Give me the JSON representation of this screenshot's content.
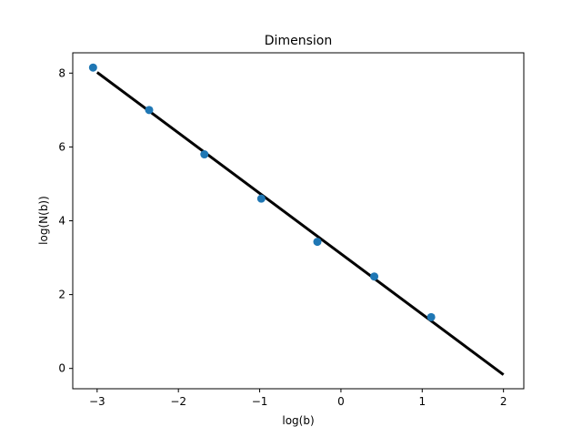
{
  "chart_data": {
    "type": "scatter",
    "title": "Dimension",
    "xlabel": "log(b)",
    "ylabel": "log(N(b))",
    "xlim": [
      -3.3,
      2.25
    ],
    "ylim": [
      -0.55,
      8.55
    ],
    "xticks": [
      -3,
      -2,
      -1,
      0,
      1,
      2
    ],
    "xtick_labels": [
      "−3",
      "−2",
      "−1",
      "0",
      "1",
      "2"
    ],
    "yticks": [
      0,
      2,
      4,
      6,
      8
    ],
    "ytick_labels": [
      "0",
      "2",
      "4",
      "6",
      "8"
    ],
    "grid": false,
    "series": [
      {
        "type": "scatter",
        "color": "#1f77b4",
        "x": [
          -3.05,
          -2.36,
          -1.68,
          -0.98,
          -0.29,
          0.41,
          1.11
        ],
        "y": [
          8.15,
          7.0,
          5.8,
          4.6,
          3.43,
          2.49,
          1.39
        ]
      },
      {
        "type": "line",
        "color": "#000000",
        "x": [
          -3.0,
          2.0
        ],
        "y": [
          8.02,
          -0.17
        ]
      }
    ]
  }
}
